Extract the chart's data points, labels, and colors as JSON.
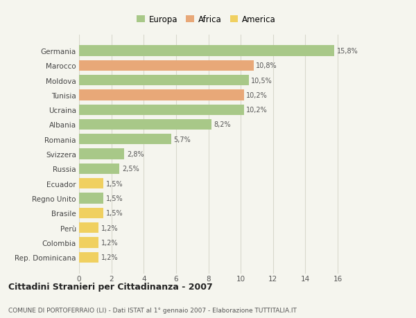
{
  "categories": [
    "Germania",
    "Marocco",
    "Moldova",
    "Tunisia",
    "Ucraina",
    "Albania",
    "Romania",
    "Svizzera",
    "Russia",
    "Ecuador",
    "Regno Unito",
    "Brasile",
    "Perù",
    "Colombia",
    "Rep. Dominicana"
  ],
  "values": [
    15.8,
    10.8,
    10.5,
    10.2,
    10.2,
    8.2,
    5.7,
    2.8,
    2.5,
    1.5,
    1.5,
    1.5,
    1.2,
    1.2,
    1.2
  ],
  "labels": [
    "15,8%",
    "10,8%",
    "10,5%",
    "10,2%",
    "10,2%",
    "8,2%",
    "5,7%",
    "2,8%",
    "2,5%",
    "1,5%",
    "1,5%",
    "1,5%",
    "1,2%",
    "1,2%",
    "1,2%"
  ],
  "colors": [
    "#a8c888",
    "#e8a878",
    "#a8c888",
    "#e8a878",
    "#a8c888",
    "#a8c888",
    "#a8c888",
    "#a8c888",
    "#a8c888",
    "#f0d060",
    "#a8c888",
    "#f0d060",
    "#f0d060",
    "#f0d060",
    "#f0d060"
  ],
  "legend_labels": [
    "Europa",
    "Africa",
    "America"
  ],
  "legend_colors": [
    "#a8c888",
    "#e8a878",
    "#f0d060"
  ],
  "title": "Cittadini Stranieri per Cittadinanza - 2007",
  "subtitle": "COMUNE DI PORTOFERRAIO (LI) - Dati ISTAT al 1° gennaio 2007 - Elaborazione TUTTITALIA.IT",
  "xlim": [
    0,
    17.5
  ],
  "xticks": [
    0,
    2,
    4,
    6,
    8,
    10,
    12,
    14,
    16
  ],
  "background_color": "#f5f5ee",
  "grid_color": "#d8d8cc",
  "bar_height": 0.72
}
